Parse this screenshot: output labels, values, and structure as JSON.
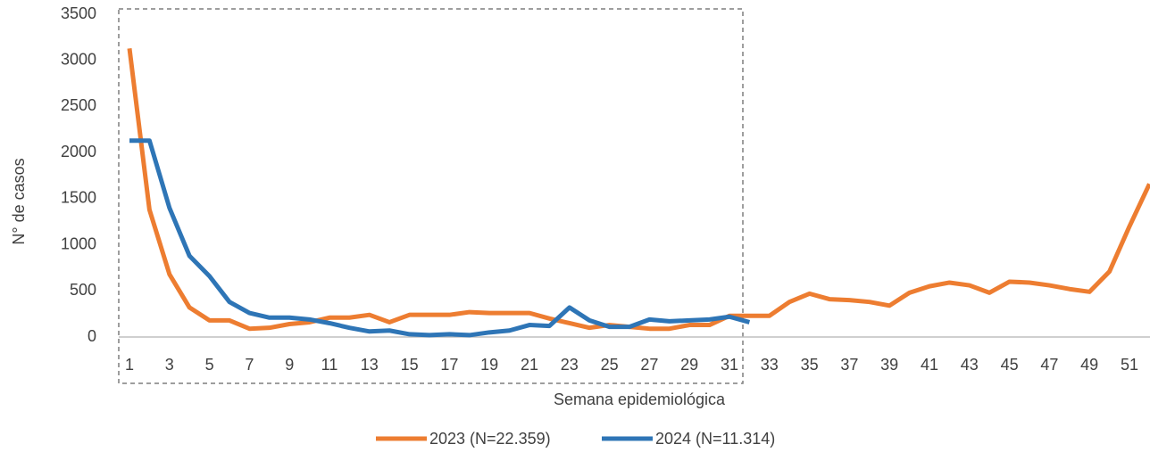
{
  "chart_data": {
    "type": "line",
    "x_label": "Semana epidemiológica",
    "y_label": "N° de casos",
    "categories": [
      "1",
      null,
      "3",
      null,
      "5",
      null,
      "7",
      null,
      "9",
      null,
      "11",
      null,
      "13",
      null,
      "15",
      null,
      "17",
      null,
      "19",
      null,
      "21",
      null,
      "23",
      null,
      "25",
      null,
      "27",
      null,
      "29",
      null,
      "31",
      null,
      "33",
      null,
      "35",
      null,
      "37",
      null,
      "39",
      null,
      "41",
      null,
      "43",
      null,
      "45",
      null,
      "47",
      null,
      "49",
      null,
      "51",
      null
    ],
    "series": [
      {
        "name": "2023 (N=22.359)",
        "color": "#ed7d31",
        "values": [
          3130,
          1380,
          680,
          320,
          180,
          180,
          90,
          100,
          140,
          160,
          210,
          210,
          240,
          160,
          240,
          240,
          240,
          270,
          260,
          260,
          260,
          200,
          150,
          100,
          130,
          110,
          90,
          90,
          130,
          130,
          230,
          230,
          230,
          380,
          470,
          410,
          400,
          380,
          340,
          480,
          550,
          590,
          560,
          480,
          600,
          590,
          560,
          520,
          490,
          710,
          1200,
          1660
        ]
      },
      {
        "name": "2024 (N=11.314)",
        "color": "#2e75b6",
        "values": [
          2130,
          2130,
          1400,
          880,
          660,
          380,
          260,
          210,
          210,
          190,
          150,
          100,
          60,
          70,
          30,
          20,
          30,
          20,
          50,
          70,
          130,
          120,
          320,
          180,
          110,
          110,
          190,
          170,
          180,
          190,
          220,
          160,
          null,
          null,
          null,
          null,
          null,
          null,
          null,
          null,
          null,
          null,
          null,
          null,
          null,
          null,
          null,
          null,
          null,
          null,
          null,
          null
        ]
      }
    ],
    "ylim": [
      0,
      3500
    ],
    "yticks": [
      0,
      500,
      1000,
      1500,
      2000,
      2500,
      3000,
      3500
    ],
    "grid": false,
    "legend": "bottom"
  }
}
